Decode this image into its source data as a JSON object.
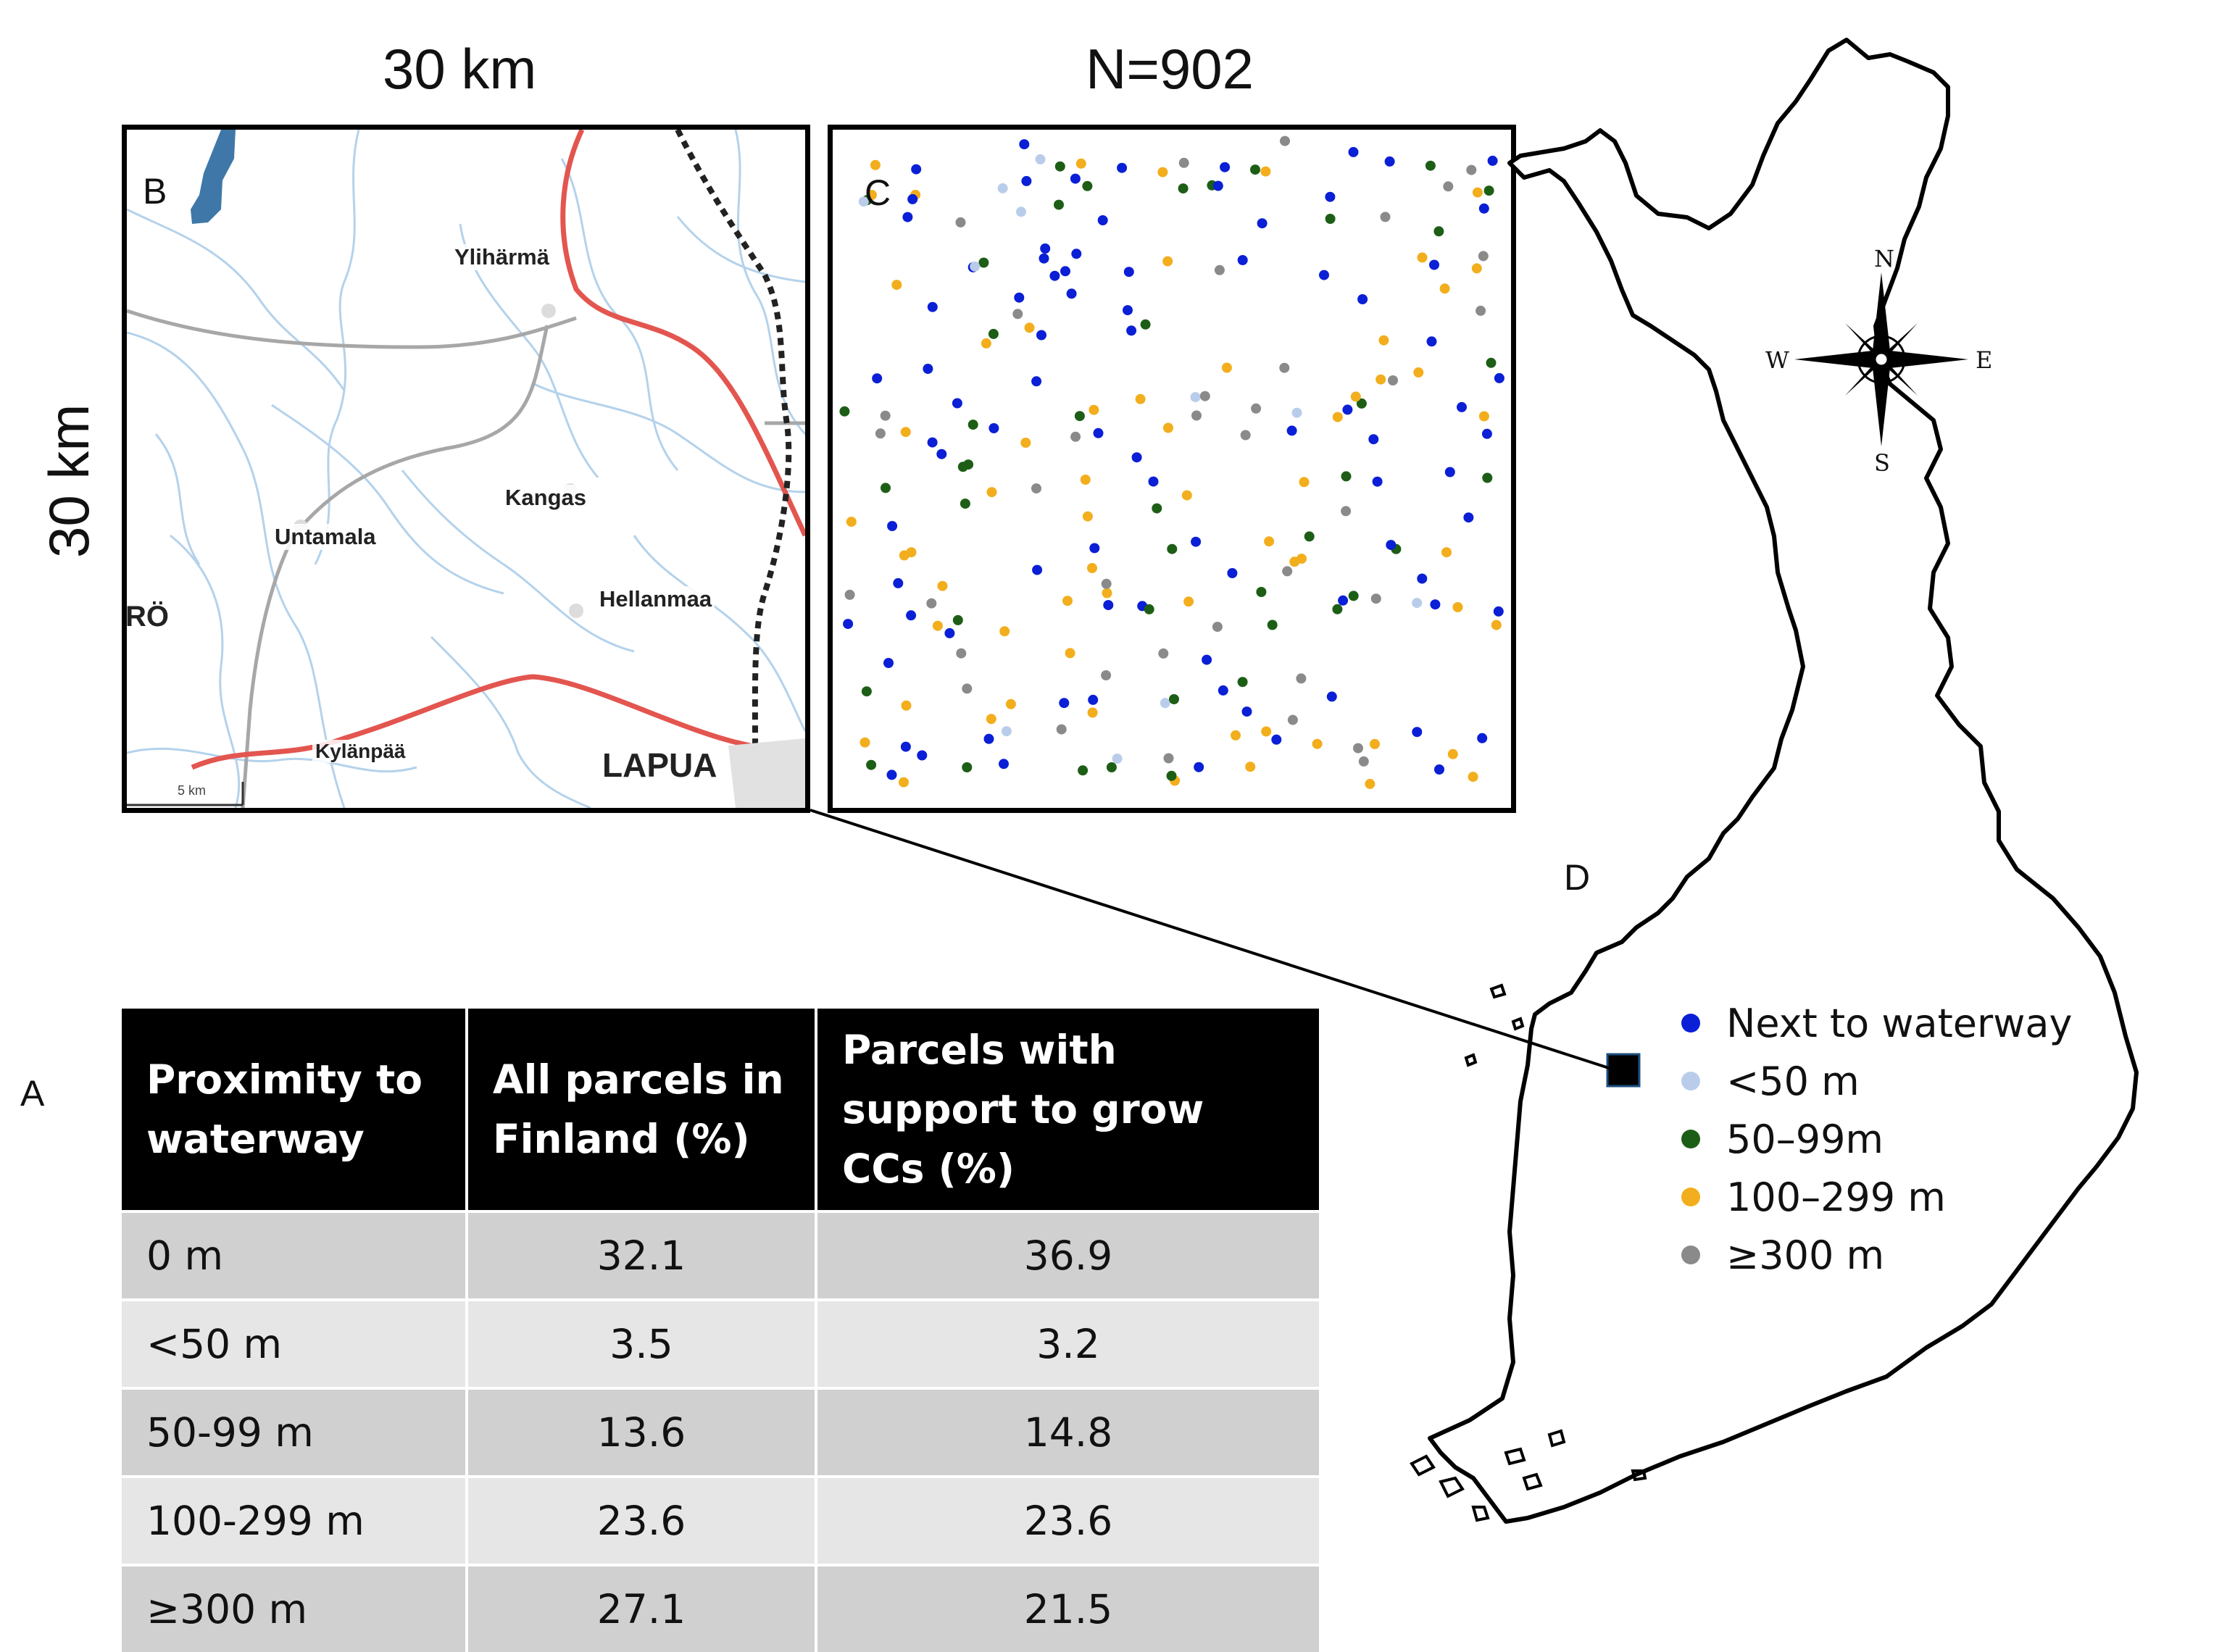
{
  "scale_labels": {
    "top": "30 km",
    "side": "30 km",
    "n_label": "N=902"
  },
  "panel_letters": {
    "a": "A",
    "b": "B",
    "c": "C",
    "d": "D"
  },
  "map_b": {
    "places": [
      "Ylihärmä",
      "Kangas",
      "Untamala",
      "Hellanmaa",
      "RÖ",
      "Kylänpää",
      "LAPUA"
    ],
    "scalebar": "5 km"
  },
  "compass": {
    "n": "N",
    "s": "S",
    "e": "E",
    "w": "W"
  },
  "legend": [
    {
      "label": "Next to waterway",
      "color": "#0a1fd6"
    },
    {
      "label": "<50 m",
      "color": "#b9cdeb"
    },
    {
      "label": "50–99m",
      "color": "#1d5e16"
    },
    {
      "label": "100–299 m",
      "color": "#f2ae1c"
    },
    {
      "label": "≥300 m",
      "color": "#8a8a8a"
    }
  ],
  "table": {
    "headers": [
      "Proximity to waterway",
      "All parcels in Finland (%)",
      "Parcels with support to grow CCs (%)"
    ],
    "rows": [
      [
        "0 m",
        "32.1",
        "36.9"
      ],
      [
        "<50 m",
        "3.5",
        "3.2"
      ],
      [
        "50-99 m",
        "13.6",
        "14.8"
      ],
      [
        "100-299 m",
        "23.6",
        "23.6"
      ],
      [
        "≥300 m",
        "27.1",
        "21.5"
      ]
    ]
  }
}
